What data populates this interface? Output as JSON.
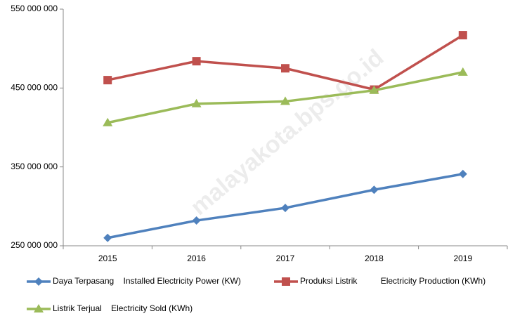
{
  "chart_data": {
    "type": "line",
    "watermark": "malayakota.bps.go.id",
    "categories": [
      "2015",
      "2016",
      "2017",
      "2018",
      "2019"
    ],
    "series": [
      {
        "name": "Daya Terpasang    Installed Electricity Power (KW)",
        "color": "#4f81bd",
        "marker": "diamond",
        "values": [
          260000000,
          282000000,
          298000000,
          321000000,
          341000000
        ]
      },
      {
        "name": "Produksi Listrik          Electricity Production (KWh)",
        "color": "#c0504d",
        "marker": "square",
        "values": [
          460000000,
          484000000,
          475000000,
          448000000,
          517000000
        ]
      },
      {
        "name": "Listrik Terjual    Electricity Sold (KWh)",
        "color": "#9bbb59",
        "marker": "triangle",
        "values": [
          406000000,
          430000000,
          433000000,
          447000000,
          470000000
        ]
      }
    ],
    "ylim": [
      250000000,
      550000000
    ],
    "yticks": [
      {
        "value": 250000000,
        "label": "250 000 000"
      },
      {
        "value": 350000000,
        "label": "350 000 000"
      },
      {
        "value": 450000000,
        "label": "450 000 000"
      },
      {
        "value": 550000000,
        "label": "550 000 000"
      }
    ],
    "grid": false
  }
}
